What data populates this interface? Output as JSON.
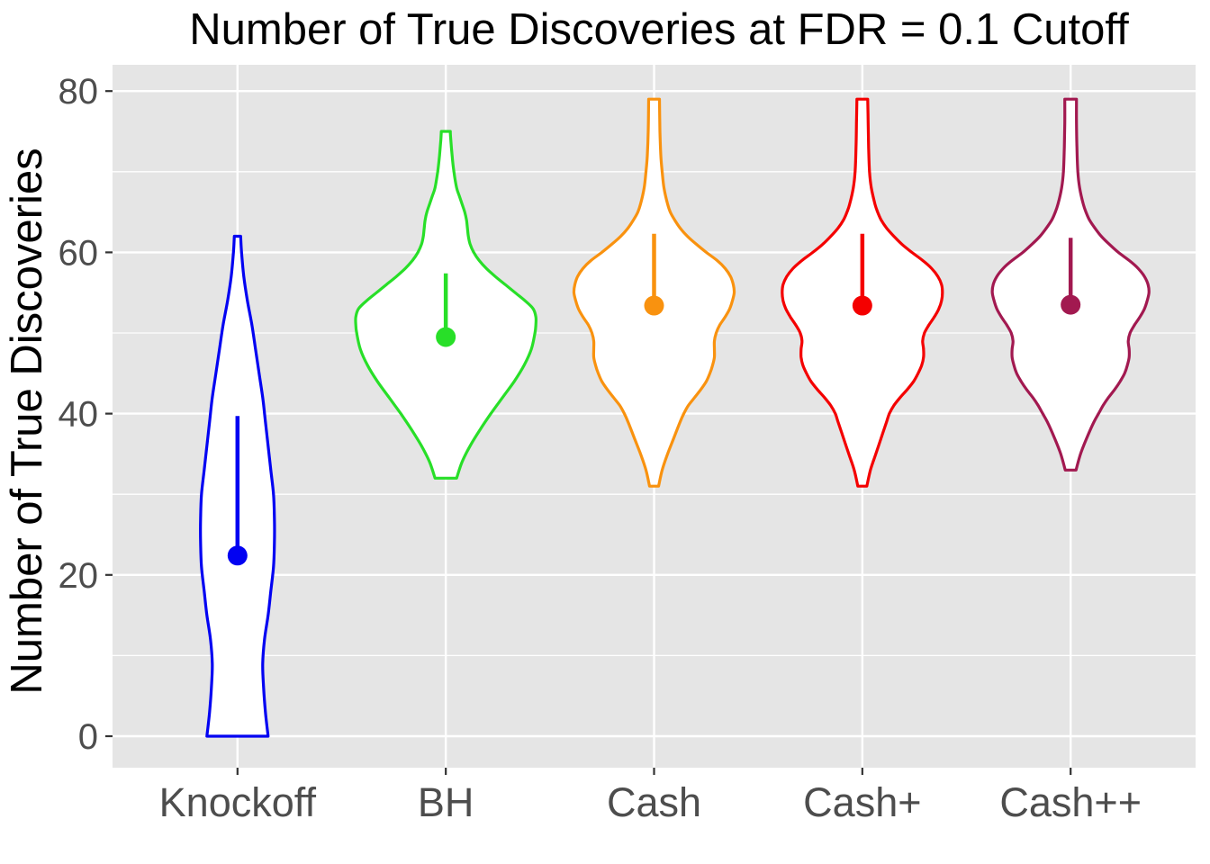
{
  "figure": {
    "kind": "ggplot-style violin plot"
  },
  "chart_data": {
    "type": "violin",
    "title": "Number of True Discoveries at FDR = 0.1 Cutoff",
    "xlabel": "",
    "ylabel": "Number of True Discoveries",
    "categories": [
      "Knockoff",
      "BH",
      "Cash",
      "Cash+",
      "Cash++"
    ],
    "y_ticks_major": [
      0,
      20,
      40,
      60,
      80
    ],
    "y_ticks_minor": [
      10,
      30,
      50,
      70
    ],
    "ylim": [
      0,
      80
    ],
    "grid": "major-and-minor-white-on-gray",
    "legend": "none",
    "colors": {
      "panel_background": "#E5E5E5",
      "gridline": "#FFFFFF",
      "violin_fill": "#FFFFFF",
      "tick_mark": "#333333",
      "tick_label": "#4D4D4D",
      "title_text": "#000000"
    },
    "series": [
      {
        "name": "Knockoff",
        "color": "#0202F2",
        "mean": 22.4,
        "mean_line_top": 39.7,
        "range": [
          0,
          62
        ],
        "profile": [
          [
            0,
            34
          ],
          [
            3,
            31
          ],
          [
            6,
            29
          ],
          [
            9,
            28
          ],
          [
            12,
            30
          ],
          [
            15,
            34
          ],
          [
            18,
            37
          ],
          [
            21,
            40
          ],
          [
            24,
            41
          ],
          [
            27,
            41
          ],
          [
            30,
            40
          ],
          [
            33,
            37
          ],
          [
            36,
            34
          ],
          [
            39,
            31
          ],
          [
            42,
            28
          ],
          [
            45,
            24
          ],
          [
            48,
            20
          ],
          [
            51,
            16
          ],
          [
            54,
            11
          ],
          [
            57,
            7
          ],
          [
            60,
            4.5
          ],
          [
            62,
            3.5
          ]
        ]
      },
      {
        "name": "BH",
        "color": "#28DF28",
        "mean": 49.5,
        "mean_line_top": 57.4,
        "range": [
          32,
          75
        ],
        "profile": [
          [
            32,
            12
          ],
          [
            34,
            18
          ],
          [
            36,
            27
          ],
          [
            38,
            38
          ],
          [
            40,
            50
          ],
          [
            42,
            63
          ],
          [
            44,
            76
          ],
          [
            46,
            87
          ],
          [
            48,
            95
          ],
          [
            50,
            99
          ],
          [
            51,
            100
          ],
          [
            52,
            100
          ],
          [
            53,
            97
          ],
          [
            54,
            88
          ],
          [
            55,
            77
          ],
          [
            56,
            66
          ],
          [
            57,
            55
          ],
          [
            58,
            45
          ],
          [
            59,
            37
          ],
          [
            60,
            31
          ],
          [
            61,
            27
          ],
          [
            62,
            25
          ],
          [
            63,
            24
          ],
          [
            64,
            23
          ],
          [
            65,
            21
          ],
          [
            66,
            18
          ],
          [
            67,
            15
          ],
          [
            68,
            12
          ],
          [
            70,
            9
          ],
          [
            72,
            7
          ],
          [
            74,
            5.5
          ],
          [
            75,
            5
          ]
        ]
      },
      {
        "name": "Cash",
        "color": "#F9920F",
        "mean": 53.4,
        "mean_line_top": 62.3,
        "range": [
          31,
          79
        ],
        "profile": [
          [
            31,
            5
          ],
          [
            33,
            9
          ],
          [
            35,
            15
          ],
          [
            37,
            22
          ],
          [
            39,
            29
          ],
          [
            40,
            33
          ],
          [
            41,
            38
          ],
          [
            42,
            45
          ],
          [
            43,
            52
          ],
          [
            44,
            58
          ],
          [
            45,
            62
          ],
          [
            46,
            65
          ],
          [
            47,
            67
          ],
          [
            48,
            67
          ],
          [
            49,
            67
          ],
          [
            50,
            69
          ],
          [
            51,
            73
          ],
          [
            52,
            79
          ],
          [
            53,
            84
          ],
          [
            54,
            87
          ],
          [
            55,
            89
          ],
          [
            56,
            88
          ],
          [
            57,
            85
          ],
          [
            58,
            79
          ],
          [
            59,
            70
          ],
          [
            60,
            58
          ],
          [
            61,
            47
          ],
          [
            62,
            37
          ],
          [
            63,
            29
          ],
          [
            64,
            23
          ],
          [
            65,
            18
          ],
          [
            66,
            15
          ],
          [
            68,
            11
          ],
          [
            70,
            9
          ],
          [
            72,
            7.5
          ],
          [
            75,
            6.5
          ],
          [
            79,
            6
          ]
        ]
      },
      {
        "name": "Cash+",
        "color": "#F40000",
        "mean": 53.4,
        "mean_line_top": 62.3,
        "range": [
          31,
          79
        ],
        "profile": [
          [
            31,
            5
          ],
          [
            33,
            9
          ],
          [
            35,
            15
          ],
          [
            37,
            21
          ],
          [
            39,
            27
          ],
          [
            40,
            30
          ],
          [
            41,
            35
          ],
          [
            42,
            42
          ],
          [
            43,
            50
          ],
          [
            44,
            57
          ],
          [
            45,
            62
          ],
          [
            46,
            66
          ],
          [
            47,
            68
          ],
          [
            48,
            68
          ],
          [
            49,
            67
          ],
          [
            50,
            69
          ],
          [
            51,
            74
          ],
          [
            52,
            80
          ],
          [
            53,
            85
          ],
          [
            54,
            88
          ],
          [
            55,
            89
          ],
          [
            56,
            88
          ],
          [
            57,
            84
          ],
          [
            58,
            77
          ],
          [
            59,
            67
          ],
          [
            60,
            55
          ],
          [
            61,
            44
          ],
          [
            62,
            35
          ],
          [
            63,
            27
          ],
          [
            64,
            21
          ],
          [
            65,
            17
          ],
          [
            66,
            14
          ],
          [
            68,
            10
          ],
          [
            70,
            8
          ],
          [
            73,
            7
          ],
          [
            76,
            6.5
          ],
          [
            79,
            6
          ]
        ]
      },
      {
        "name": "Cash++",
        "color": "#A21950",
        "mean": 53.5,
        "mean_line_top": 61.8,
        "range": [
          33,
          79
        ],
        "profile": [
          [
            33,
            6
          ],
          [
            35,
            11
          ],
          [
            37,
            18
          ],
          [
            39,
            26
          ],
          [
            40,
            31
          ],
          [
            41,
            36
          ],
          [
            42,
            42
          ],
          [
            43,
            49
          ],
          [
            44,
            55
          ],
          [
            45,
            60
          ],
          [
            46,
            63
          ],
          [
            47,
            65
          ],
          [
            48,
            65
          ],
          [
            49,
            64
          ],
          [
            50,
            66
          ],
          [
            51,
            71
          ],
          [
            52,
            77
          ],
          [
            53,
            82
          ],
          [
            54,
            85
          ],
          [
            55,
            87
          ],
          [
            56,
            86
          ],
          [
            57,
            82
          ],
          [
            58,
            75
          ],
          [
            59,
            65
          ],
          [
            60,
            53
          ],
          [
            61,
            43
          ],
          [
            62,
            34
          ],
          [
            63,
            27
          ],
          [
            64,
            21
          ],
          [
            65,
            17
          ],
          [
            66,
            14
          ],
          [
            68,
            10
          ],
          [
            70,
            8
          ],
          [
            73,
            7
          ],
          [
            76,
            6.5
          ],
          [
            79,
            6.5
          ]
        ]
      }
    ]
  }
}
